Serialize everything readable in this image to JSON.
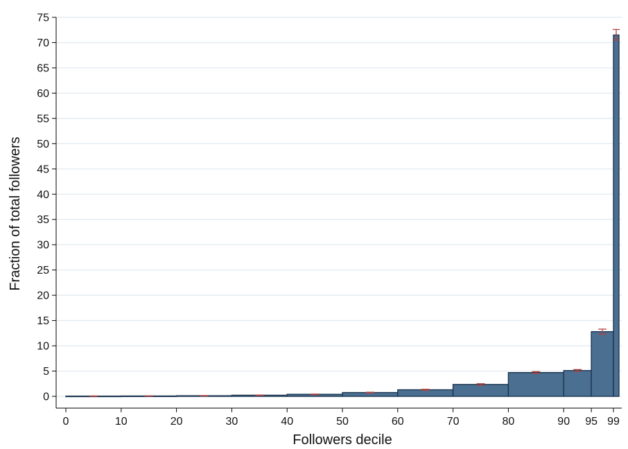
{
  "chart_data": {
    "type": "bar",
    "xlabel": "Followers decile",
    "ylabel": "Fraction of total followers",
    "xlim": [
      0,
      100
    ],
    "ylim": [
      0,
      75
    ],
    "xticks": [
      0,
      10,
      20,
      30,
      40,
      50,
      60,
      70,
      80,
      90,
      95,
      99
    ],
    "yticks": [
      0,
      5,
      10,
      15,
      20,
      25,
      30,
      35,
      40,
      45,
      50,
      55,
      60,
      65,
      70,
      75
    ],
    "grid": true,
    "bar_color": "#4a6f91",
    "bar_edge_color": "#1b3550",
    "error_bar_color": "#b0413e",
    "bins": [
      {
        "x0": 0,
        "x1": 10,
        "value": 0.05,
        "err_low": 0.02,
        "err_high": 0.08
      },
      {
        "x0": 10,
        "x1": 20,
        "value": 0.07,
        "err_low": 0.04,
        "err_high": 0.1
      },
      {
        "x0": 20,
        "x1": 30,
        "value": 0.12,
        "err_low": 0.09,
        "err_high": 0.16
      },
      {
        "x0": 30,
        "x1": 40,
        "value": 0.22,
        "err_low": 0.18,
        "err_high": 0.26
      },
      {
        "x0": 40,
        "x1": 50,
        "value": 0.4,
        "err_low": 0.35,
        "err_high": 0.45
      },
      {
        "x0": 50,
        "x1": 60,
        "value": 0.75,
        "err_low": 0.68,
        "err_high": 0.82
      },
      {
        "x0": 60,
        "x1": 70,
        "value": 1.3,
        "err_low": 1.2,
        "err_high": 1.4
      },
      {
        "x0": 70,
        "x1": 80,
        "value": 2.35,
        "err_low": 2.2,
        "err_high": 2.5
      },
      {
        "x0": 80,
        "x1": 90,
        "value": 4.7,
        "err_low": 4.55,
        "err_high": 4.9
      },
      {
        "x0": 90,
        "x1": 95,
        "value": 5.1,
        "err_low": 4.95,
        "err_high": 5.3
      },
      {
        "x0": 95,
        "x1": 99,
        "value": 12.8,
        "err_low": 12.3,
        "err_high": 13.3
      },
      {
        "x0": 99,
        "x1": 100,
        "value": 71.5,
        "err_low": 70.5,
        "err_high": 72.6
      }
    ]
  }
}
